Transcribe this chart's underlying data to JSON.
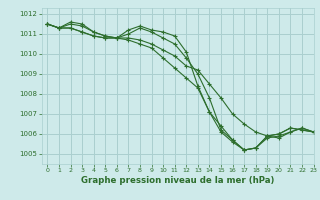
{
  "background_color": "#ceeaea",
  "grid_color": "#aacfcf",
  "line_color": "#2d6e2d",
  "title": "Graphe pression niveau de la mer (hPa)",
  "xlim": [
    -0.5,
    23
  ],
  "ylim": [
    1004.5,
    1012.3
  ],
  "yticks": [
    1005,
    1006,
    1007,
    1008,
    1009,
    1010,
    1011,
    1012
  ],
  "xticks": [
    0,
    1,
    2,
    3,
    4,
    5,
    6,
    7,
    8,
    9,
    10,
    11,
    12,
    13,
    14,
    15,
    16,
    17,
    18,
    19,
    20,
    21,
    22,
    23
  ],
  "series": [
    [
      1011.5,
      1011.3,
      1011.6,
      1011.5,
      1011.1,
      1010.9,
      1010.8,
      1011.2,
      1011.4,
      1011.2,
      1011.1,
      1010.9,
      1010.1,
      1008.4,
      1007.1,
      1006.4,
      1005.7,
      1005.2,
      1005.3,
      1005.9,
      1006.0,
      1006.3,
      1006.2,
      1006.1
    ],
    [
      1011.5,
      1011.3,
      1011.5,
      1011.4,
      1011.1,
      1010.9,
      1010.8,
      1011.0,
      1011.3,
      1011.1,
      1010.8,
      1010.5,
      1009.8,
      1009.0,
      1007.8,
      1006.2,
      1005.7,
      1005.2,
      1005.3,
      1005.9,
      1006.0,
      1006.3,
      1006.2,
      1006.1
    ],
    [
      1011.5,
      1011.3,
      1011.3,
      1011.1,
      1010.9,
      1010.8,
      1010.8,
      1010.8,
      1010.7,
      1010.5,
      1010.2,
      1009.9,
      1009.4,
      1009.2,
      1008.5,
      1007.8,
      1007.0,
      1006.5,
      1006.1,
      1005.9,
      1005.8,
      1006.1,
      1006.3,
      1006.1
    ],
    [
      1011.5,
      1011.3,
      1011.3,
      1011.1,
      1010.9,
      1010.8,
      1010.8,
      1010.7,
      1010.5,
      1010.3,
      1009.8,
      1009.3,
      1008.8,
      1008.3,
      1007.1,
      1006.1,
      1005.6,
      1005.2,
      1005.3,
      1005.8,
      1005.9,
      1006.1,
      1006.3,
      1006.1
    ]
  ]
}
